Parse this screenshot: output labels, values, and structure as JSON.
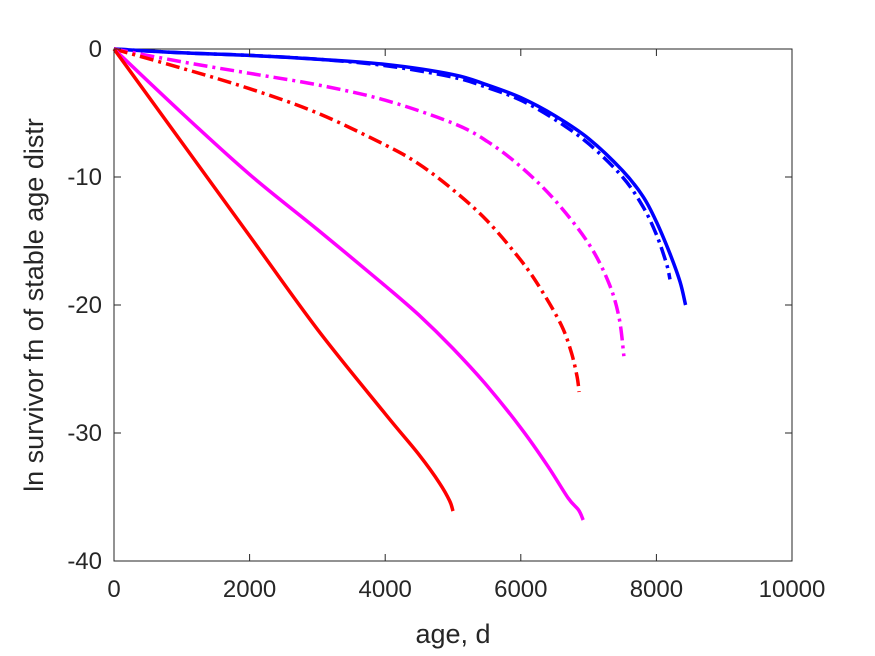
{
  "chart_data": {
    "type": "line",
    "title": "",
    "xlabel": "age, d",
    "ylabel": "ln survivor fn of stable age distr",
    "xlim": [
      0,
      10000
    ],
    "ylim": [
      -40,
      0
    ],
    "xticks": [
      0,
      2000,
      4000,
      6000,
      8000,
      10000
    ],
    "yticks": [
      0,
      -10,
      -20,
      -30,
      -40
    ],
    "xtick_labels": [
      "0",
      "2000",
      "4000",
      "6000",
      "8000",
      "10000"
    ],
    "ytick_labels": [
      "0",
      "-10",
      "-20",
      "-30",
      "-40"
    ],
    "grid": false,
    "legend": "none",
    "series": [
      {
        "color": "#0000FF",
        "style": "solid",
        "x": [
          0,
          1000,
          2000,
          3000,
          4000,
          5000,
          5500,
          6000,
          6500,
          7000,
          7500,
          7800,
          8000,
          8200,
          8350,
          8430
        ],
        "y": [
          0,
          -0.3,
          -0.5,
          -0.8,
          -1.2,
          -2.0,
          -2.8,
          -3.8,
          -5.2,
          -7.0,
          -9.5,
          -11.5,
          -13.5,
          -16.0,
          -18.2,
          -20.0
        ]
      },
      {
        "color": "#0000FF",
        "style": "dashdot",
        "x": [
          0,
          1000,
          2000,
          3000,
          4000,
          5000,
          5500,
          6000,
          6500,
          7000,
          7500,
          7800,
          8000,
          8150,
          8200
        ],
        "y": [
          0,
          -0.3,
          -0.5,
          -0.8,
          -1.3,
          -2.2,
          -3.0,
          -4.0,
          -5.5,
          -7.4,
          -10.0,
          -12.3,
          -14.5,
          -16.8,
          -18.0
        ]
      },
      {
        "color": "#FF00FF",
        "style": "dashdot",
        "x": [
          0,
          1000,
          2000,
          3000,
          4000,
          5000,
          5500,
          6000,
          6500,
          7000,
          7300,
          7450,
          7520
        ],
        "y": [
          0,
          -1.0,
          -1.9,
          -2.8,
          -4.0,
          -5.8,
          -7.2,
          -9.2,
          -11.8,
          -15.2,
          -18.3,
          -21.0,
          -24.0
        ]
      },
      {
        "color": "#FF0000",
        "style": "dashdot",
        "x": [
          0,
          1000,
          2000,
          3000,
          4000,
          4500,
          5000,
          5500,
          6000,
          6300,
          6600,
          6750,
          6830,
          6860
        ],
        "y": [
          0,
          -1.5,
          -3.1,
          -5.0,
          -7.5,
          -9.0,
          -11.0,
          -13.4,
          -16.5,
          -18.8,
          -21.6,
          -23.8,
          -25.6,
          -26.8
        ]
      },
      {
        "color": "#FF00FF",
        "style": "solid",
        "x": [
          0,
          1000,
          2000,
          3000,
          4000,
          4500,
          5000,
          5500,
          6000,
          6400,
          6700,
          6850,
          6920
        ],
        "y": [
          0,
          -5.0,
          -9.8,
          -14.1,
          -18.5,
          -20.8,
          -23.4,
          -26.3,
          -29.6,
          -32.6,
          -35.1,
          -36.0,
          -36.8
        ]
      },
      {
        "color": "#FF0000",
        "style": "solid",
        "x": [
          0,
          1000,
          2000,
          3000,
          4000,
          4500,
          4800,
          4950,
          5000
        ],
        "y": [
          0,
          -7.3,
          -14.6,
          -21.9,
          -28.5,
          -31.7,
          -33.9,
          -35.3,
          -36.1
        ]
      }
    ]
  }
}
